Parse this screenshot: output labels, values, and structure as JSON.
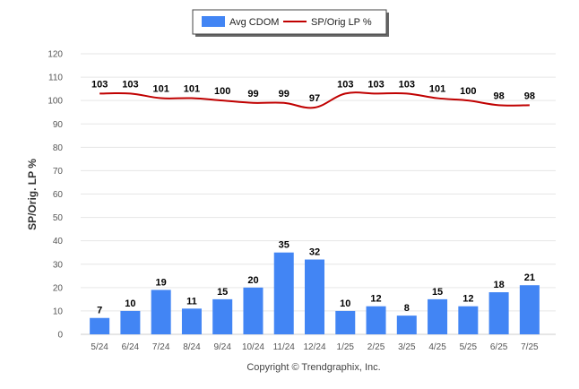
{
  "chart_data": {
    "type": "bar",
    "categories": [
      "5/24",
      "6/24",
      "7/24",
      "8/24",
      "9/24",
      "10/24",
      "11/24",
      "12/24",
      "1/25",
      "2/25",
      "3/25",
      "4/25",
      "5/25",
      "6/25",
      "7/25"
    ],
    "series": [
      {
        "name": "Avg CDOM",
        "type": "bar",
        "color": "#4285f4",
        "values": [
          7,
          10,
          19,
          11,
          15,
          20,
          35,
          32,
          10,
          12,
          8,
          15,
          12,
          18,
          21
        ]
      },
      {
        "name": "SP/Orig LP %",
        "type": "line",
        "color": "#c00000",
        "values": [
          103,
          103,
          101,
          101,
          100,
          99,
          99,
          97,
          103,
          103,
          103,
          101,
          100,
          98,
          98
        ]
      }
    ],
    "ylabel": "SP/Orig. LP %",
    "xlabel": "",
    "ylim": [
      0,
      120
    ],
    "yticks": [
      0,
      10,
      20,
      30,
      40,
      50,
      60,
      70,
      80,
      90,
      100,
      110,
      120
    ],
    "grid": true,
    "legend": "top-center"
  },
  "footer": {
    "copyright": "Copyright © Trendgraphix, Inc."
  }
}
